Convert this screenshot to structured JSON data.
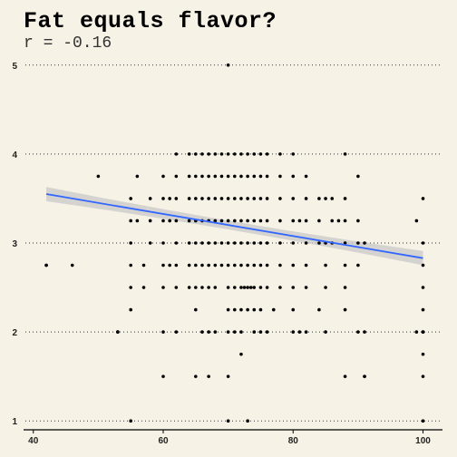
{
  "chart_data": {
    "type": "scatter",
    "title": "Fat equals flavor?",
    "subtitle": "r = -0.16",
    "xlabel": "",
    "ylabel": "",
    "xlim": [
      38.5,
      103
    ],
    "ylim": [
      0.9,
      5.1
    ],
    "xticks": [
      40,
      60,
      80,
      100
    ],
    "yticks": [
      1,
      2,
      3,
      4,
      5
    ],
    "grid": "horizontal dotted",
    "colors": {
      "background": "#f7f2e6",
      "points": "#000000",
      "fit_line": "#3366ff",
      "band": "#c8c8c8"
    },
    "trend": {
      "method": "linear fit with confidence band",
      "x": [
        42,
        100
      ],
      "y": [
        3.55,
        2.83
      ],
      "band_halfwidth": [
        0.08,
        0.05,
        0.08
      ]
    },
    "points": [
      [
        42,
        2.75
      ],
      [
        46,
        2.75
      ],
      [
        50,
        3.75
      ],
      [
        53,
        2
      ],
      [
        55,
        1
      ],
      [
        70,
        5
      ],
      [
        88,
        1.5
      ],
      [
        91,
        1.5
      ],
      [
        100,
        1
      ],
      [
        100,
        2
      ],
      [
        62,
        4
      ],
      [
        64,
        4
      ],
      [
        65,
        4
      ],
      [
        66,
        4
      ],
      [
        67,
        4
      ],
      [
        68,
        4
      ],
      [
        69,
        4
      ],
      [
        70,
        4
      ],
      [
        71,
        4
      ],
      [
        72,
        4
      ],
      [
        73,
        4
      ],
      [
        74,
        4
      ],
      [
        75,
        4
      ],
      [
        76,
        4
      ],
      [
        78,
        4
      ],
      [
        80,
        4
      ],
      [
        88,
        4
      ],
      [
        56,
        3.75
      ],
      [
        60,
        3.75
      ],
      [
        62,
        3.75
      ],
      [
        64,
        3.75
      ],
      [
        65,
        3.75
      ],
      [
        66,
        3.75
      ],
      [
        67,
        3.75
      ],
      [
        68,
        3.75
      ],
      [
        69,
        3.75
      ],
      [
        70,
        3.75
      ],
      [
        71,
        3.75
      ],
      [
        72,
        3.75
      ],
      [
        73,
        3.75
      ],
      [
        74,
        3.75
      ],
      [
        75,
        3.75
      ],
      [
        76,
        3.75
      ],
      [
        78,
        3.75
      ],
      [
        80,
        3.75
      ],
      [
        82,
        3.75
      ],
      [
        90,
        3.75
      ],
      [
        55,
        3.5
      ],
      [
        58,
        3.5
      ],
      [
        60,
        3.5
      ],
      [
        61,
        3.5
      ],
      [
        62,
        3.5
      ],
      [
        64,
        3.5
      ],
      [
        65,
        3.5
      ],
      [
        66,
        3.5
      ],
      [
        67,
        3.5
      ],
      [
        68,
        3.5
      ],
      [
        69,
        3.5
      ],
      [
        70,
        3.5
      ],
      [
        71,
        3.5
      ],
      [
        72,
        3.5
      ],
      [
        73,
        3.5
      ],
      [
        74,
        3.5
      ],
      [
        75,
        3.5
      ],
      [
        76,
        3.5
      ],
      [
        78,
        3.5
      ],
      [
        80,
        3.5
      ],
      [
        82,
        3.5
      ],
      [
        84,
        3.5
      ],
      [
        85,
        3.5
      ],
      [
        86,
        3.5
      ],
      [
        88,
        3.5
      ],
      [
        100,
        3.5
      ],
      [
        55,
        3.25
      ],
      [
        56,
        3.25
      ],
      [
        58,
        3.25
      ],
      [
        60,
        3.25
      ],
      [
        61,
        3.25
      ],
      [
        62,
        3.25
      ],
      [
        64,
        3.25
      ],
      [
        65,
        3.25
      ],
      [
        66,
        3.25
      ],
      [
        67,
        3.25
      ],
      [
        68,
        3.25
      ],
      [
        69,
        3.25
      ],
      [
        70,
        3.25
      ],
      [
        71,
        3.25
      ],
      [
        72,
        3.25
      ],
      [
        73,
        3.25
      ],
      [
        74,
        3.25
      ],
      [
        75,
        3.25
      ],
      [
        76,
        3.25
      ],
      [
        78,
        3.25
      ],
      [
        80,
        3.25
      ],
      [
        81,
        3.25
      ],
      [
        82,
        3.25
      ],
      [
        84,
        3.25
      ],
      [
        86,
        3.25
      ],
      [
        87,
        3.25
      ],
      [
        88,
        3.25
      ],
      [
        90,
        3.25
      ],
      [
        99,
        3.25
      ],
      [
        55,
        3
      ],
      [
        58,
        3
      ],
      [
        60,
        3
      ],
      [
        62,
        3
      ],
      [
        64,
        3
      ],
      [
        65,
        3
      ],
      [
        66,
        3
      ],
      [
        67,
        3
      ],
      [
        68,
        3
      ],
      [
        69,
        3
      ],
      [
        70,
        3
      ],
      [
        71,
        3
      ],
      [
        72,
        3
      ],
      [
        73,
        3
      ],
      [
        74,
        3
      ],
      [
        75,
        3
      ],
      [
        76,
        3
      ],
      [
        78,
        3
      ],
      [
        80,
        3
      ],
      [
        82,
        3
      ],
      [
        84,
        3
      ],
      [
        85,
        3
      ],
      [
        86,
        3
      ],
      [
        88,
        3
      ],
      [
        90,
        3
      ],
      [
        91,
        3
      ],
      [
        100,
        3
      ],
      [
        42,
        2.75
      ],
      [
        55,
        2.75
      ],
      [
        57,
        2.75
      ],
      [
        60,
        2.75
      ],
      [
        61,
        2.75
      ],
      [
        62,
        2.75
      ],
      [
        64,
        2.75
      ],
      [
        65,
        2.75
      ],
      [
        66,
        2.75
      ],
      [
        67,
        2.75
      ],
      [
        68,
        2.75
      ],
      [
        69,
        2.75
      ],
      [
        70,
        2.75
      ],
      [
        71,
        2.75
      ],
      [
        72,
        2.75
      ],
      [
        73,
        2.75
      ],
      [
        74,
        2.75
      ],
      [
        75,
        2.75
      ],
      [
        76,
        2.75
      ],
      [
        78,
        2.75
      ],
      [
        80,
        2.75
      ],
      [
        82,
        2.75
      ],
      [
        85,
        2.75
      ],
      [
        88,
        2.75
      ],
      [
        90,
        2.75
      ],
      [
        100,
        2.75
      ],
      [
        55,
        2.5
      ],
      [
        57,
        2.5
      ],
      [
        60,
        2.5
      ],
      [
        62,
        2.5
      ],
      [
        64,
        2.5
      ],
      [
        65,
        2.5
      ],
      [
        66,
        2.5
      ],
      [
        67,
        2.5
      ],
      [
        68,
        2.5
      ],
      [
        70,
        2.5
      ],
      [
        71,
        2.5
      ],
      [
        72,
        2.5
      ],
      [
        72.5,
        2.5
      ],
      [
        73,
        2.5
      ],
      [
        73.5,
        2.5
      ],
      [
        74,
        2.5
      ],
      [
        75,
        2.5
      ],
      [
        76,
        2.5
      ],
      [
        78,
        2.5
      ],
      [
        80,
        2.5
      ],
      [
        82,
        2.5
      ],
      [
        85,
        2.5
      ],
      [
        88,
        2.5
      ],
      [
        100,
        2.5
      ],
      [
        55,
        2.25
      ],
      [
        65,
        2.25
      ],
      [
        70,
        2.25
      ],
      [
        71,
        2.25
      ],
      [
        72,
        2.25
      ],
      [
        73,
        2.25
      ],
      [
        74,
        2.25
      ],
      [
        75,
        2.25
      ],
      [
        77,
        2.25
      ],
      [
        80,
        2.25
      ],
      [
        84,
        2.25
      ],
      [
        88,
        2.25
      ],
      [
        100,
        2.25
      ],
      [
        53,
        2
      ],
      [
        60,
        2
      ],
      [
        62,
        2
      ],
      [
        66,
        2
      ],
      [
        67,
        2
      ],
      [
        68,
        2
      ],
      [
        70,
        2
      ],
      [
        71,
        2
      ],
      [
        72,
        2
      ],
      [
        74,
        2
      ],
      [
        75,
        2
      ],
      [
        76,
        2
      ],
      [
        80,
        2
      ],
      [
        81,
        2
      ],
      [
        82,
        2
      ],
      [
        85,
        2
      ],
      [
        90,
        2
      ],
      [
        91,
        2
      ],
      [
        99,
        2
      ],
      [
        100,
        2
      ],
      [
        72,
        1.75
      ],
      [
        100,
        1.75
      ],
      [
        60,
        1.5
      ],
      [
        65,
        1.5
      ],
      [
        67,
        1.5
      ],
      [
        70,
        1.5
      ],
      [
        91,
        1.5
      ],
      [
        100,
        1.5
      ],
      [
        70,
        1
      ],
      [
        73,
        1
      ]
    ]
  }
}
